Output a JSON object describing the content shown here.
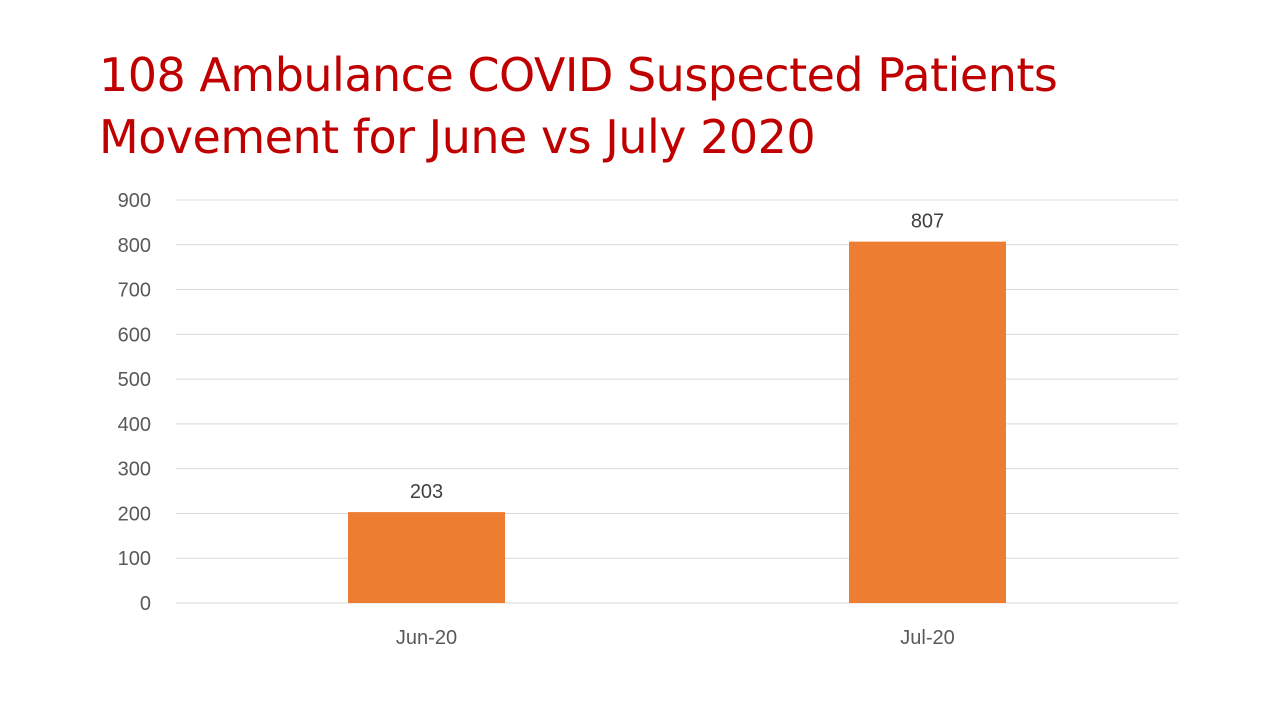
{
  "title": {
    "line1": "108 Ambulance COVID Suspected Patients",
    "line2": "Movement for June vs July 2020"
  },
  "colors": {
    "title": "#c00000",
    "bar": "#ed7d31",
    "grid": "#d9d9d9",
    "axis_text": "#595959"
  },
  "chart_data": {
    "type": "bar",
    "categories": [
      "Jun-20",
      "Jul-20"
    ],
    "values": [
      203,
      807
    ],
    "data_labels": [
      "203",
      "807"
    ],
    "ylim": [
      0,
      900
    ],
    "yticks": [
      0,
      100,
      200,
      300,
      400,
      500,
      600,
      700,
      800,
      900
    ],
    "grid": true,
    "legend": "none"
  }
}
